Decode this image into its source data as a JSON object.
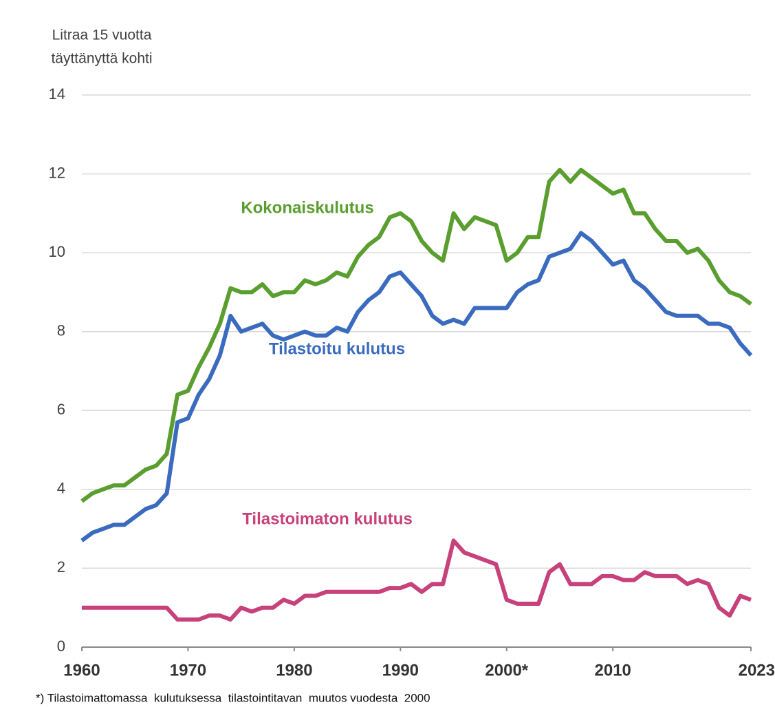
{
  "chart_data": {
    "type": "line",
    "ylabel": [
      "Litraa 15 vuotta",
      "täyttänyttä kohti"
    ],
    "footnote": "*) Tilastoimattomassa  kulutuksessa  tilastointitavan  muutos vuodesta  2000",
    "x": [
      1960,
      1961,
      1962,
      1963,
      1964,
      1965,
      1966,
      1967,
      1968,
      1969,
      1970,
      1971,
      1972,
      1973,
      1974,
      1975,
      1976,
      1977,
      1978,
      1979,
      1980,
      1981,
      1982,
      1983,
      1984,
      1985,
      1986,
      1987,
      1988,
      1989,
      1990,
      1991,
      1992,
      1993,
      1994,
      1995,
      1996,
      1997,
      1998,
      1999,
      2000,
      2001,
      2002,
      2003,
      2004,
      2005,
      2006,
      2007,
      2008,
      2009,
      2010,
      2011,
      2012,
      2013,
      2014,
      2015,
      2016,
      2017,
      2018,
      2019,
      2020,
      2021,
      2022,
      2023
    ],
    "series": [
      {
        "name": "Kokonaiskulutus",
        "color": "#5a9e2f",
        "values": [
          3.7,
          3.9,
          4.0,
          4.1,
          4.1,
          4.3,
          4.5,
          4.6,
          4.9,
          6.4,
          6.5,
          7.1,
          7.6,
          8.2,
          9.1,
          9.0,
          9.0,
          9.2,
          8.9,
          9.0,
          9.0,
          9.3,
          9.2,
          9.3,
          9.5,
          9.4,
          9.9,
          10.2,
          10.4,
          10.9,
          11.0,
          10.8,
          10.3,
          10.0,
          9.8,
          11.0,
          10.6,
          10.9,
          10.8,
          10.7,
          9.8,
          10.0,
          10.4,
          10.4,
          11.8,
          12.1,
          11.8,
          12.1,
          11.9,
          11.7,
          11.5,
          11.6,
          11.0,
          11.0,
          10.6,
          10.3,
          10.3,
          10.0,
          10.1,
          9.8,
          9.3,
          9.0,
          8.9,
          8.7
        ]
      },
      {
        "name": "Tilastoitu kulutus",
        "color": "#3a6bbf",
        "values": [
          2.7,
          2.9,
          3.0,
          3.1,
          3.1,
          3.3,
          3.5,
          3.6,
          3.9,
          5.7,
          5.8,
          6.4,
          6.8,
          7.4,
          8.4,
          8.0,
          8.1,
          8.2,
          7.9,
          7.8,
          7.9,
          8.0,
          7.9,
          7.9,
          8.1,
          8.0,
          8.5,
          8.8,
          9.0,
          9.4,
          9.5,
          9.2,
          8.9,
          8.4,
          8.2,
          8.3,
          8.2,
          8.6,
          8.6,
          8.6,
          8.6,
          9.0,
          9.2,
          9.3,
          9.9,
          10.0,
          10.1,
          10.5,
          10.3,
          10.0,
          9.7,
          9.8,
          9.3,
          9.1,
          8.8,
          8.5,
          8.4,
          8.4,
          8.4,
          8.2,
          8.2,
          8.1,
          7.7,
          7.4
        ]
      },
      {
        "name": "Tilastoimaton kulutus",
        "color": "#c7417a",
        "values": [
          1.0,
          1.0,
          1.0,
          1.0,
          1.0,
          1.0,
          1.0,
          1.0,
          1.0,
          0.7,
          0.7,
          0.7,
          0.8,
          0.8,
          0.7,
          1.0,
          0.9,
          1.0,
          1.0,
          1.2,
          1.1,
          1.3,
          1.3,
          1.4,
          1.4,
          1.4,
          1.4,
          1.4,
          1.4,
          1.5,
          1.5,
          1.6,
          1.4,
          1.6,
          1.6,
          2.7,
          2.4,
          2.3,
          2.2,
          2.1,
          1.2,
          1.1,
          1.1,
          1.1,
          1.9,
          2.1,
          1.6,
          1.6,
          1.6,
          1.8,
          1.8,
          1.7,
          1.7,
          1.9,
          1.8,
          1.8,
          1.8,
          1.6,
          1.7,
          1.6,
          1.0,
          0.8,
          1.3,
          1.2
        ]
      }
    ],
    "xlim": [
      1960,
      2023
    ],
    "xticks": [
      1960,
      1970,
      1980,
      1990,
      {
        "value": 2000,
        "label": "2000*"
      },
      2010,
      2023
    ],
    "ylim": [
      0,
      14
    ],
    "yticks": [
      0,
      2,
      4,
      6,
      8,
      10,
      12,
      14
    ],
    "grid": true
  }
}
